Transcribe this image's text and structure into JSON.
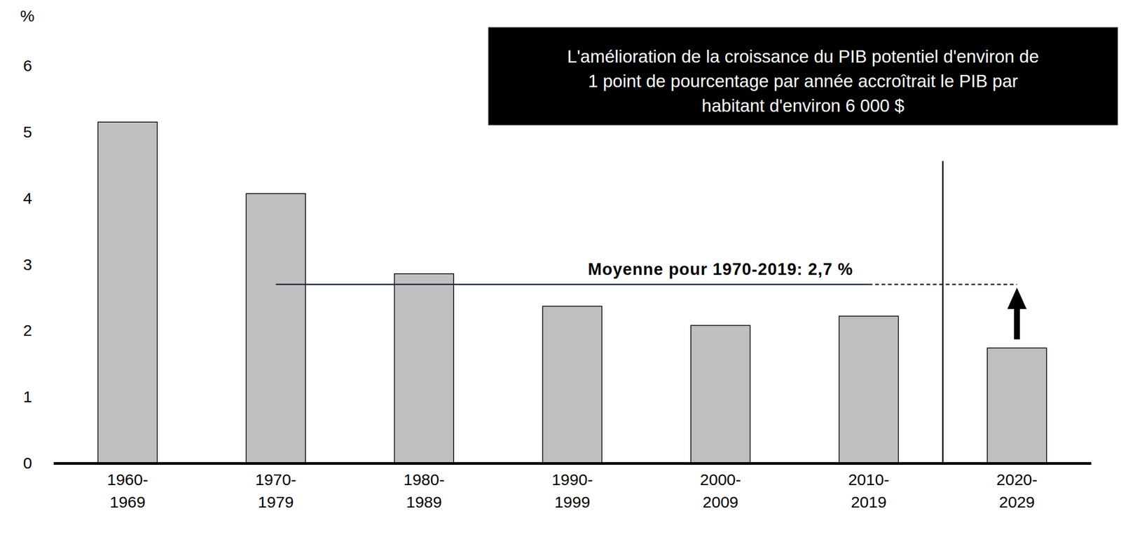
{
  "chart_data": {
    "type": "bar",
    "y_label": "%",
    "categories": [
      "1960-1969",
      "1970-1979",
      "1980-1989",
      "1990-1999",
      "2000-2009",
      "2010-2019",
      "2020-2029"
    ],
    "values": [
      5.15,
      4.07,
      2.86,
      2.37,
      2.08,
      2.22,
      1.74
    ],
    "color": "#bfbfbf",
    "ylim": [
      0,
      6
    ],
    "yticks": [
      0,
      1,
      2,
      3,
      4,
      5,
      6
    ],
    "grid": false,
    "average": {
      "value": 2.7,
      "label": "Moyenne pour 1970-2019: 2,7 %"
    },
    "annotation": [
      "L'amélioration de la croissance du PIB potentiel d'environ de",
      "1 point de pourcentage par année accroîtrait le PIB par",
      "habitant d'environ 6 000 $"
    ]
  }
}
